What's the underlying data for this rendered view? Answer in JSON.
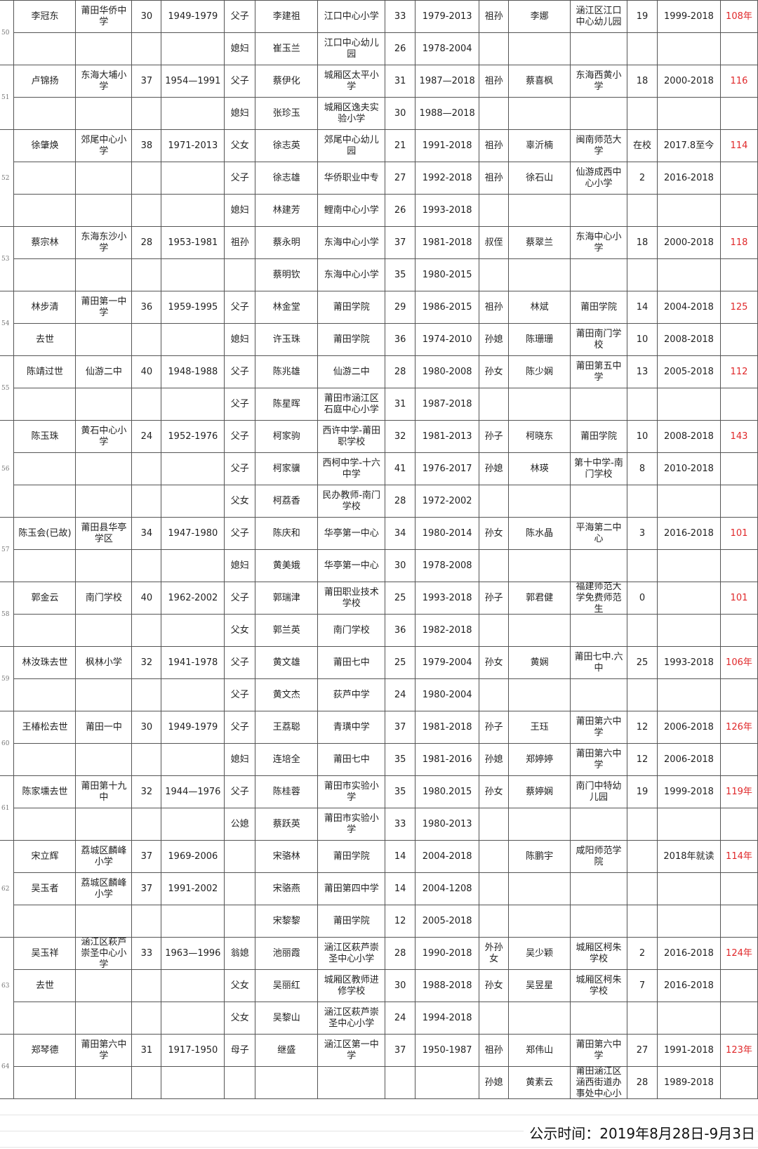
{
  "colors": {
    "grid": "#555555",
    "total_text": "#e0282a"
  },
  "groups": [
    {
      "no": "50",
      "rows": [
        [
          "李冠东",
          "莆田华侨中学",
          "30",
          "1949-1979",
          "父子",
          "李建祖",
          "江口中心小学",
          "33",
          "1979-2013",
          "祖孙",
          "李娜",
          "涵江区江口中心幼儿园",
          "19",
          "1999-2018",
          "108年"
        ],
        [
          "",
          "",
          "",
          "",
          "媳妇",
          "崔玉兰",
          "江口中心幼儿园",
          "26",
          "1978-2004",
          "",
          "",
          "",
          "",
          "",
          ""
        ]
      ]
    },
    {
      "no": "51",
      "rows": [
        [
          "卢锦扬",
          "东海大埔小学",
          "37",
          "1954—1991",
          "父子",
          "蔡伊化",
          "城厢区太平小学",
          "31",
          "1987—2018",
          "祖孙",
          "蔡喜枫",
          "东海西黄小学",
          "18",
          "2000-2018",
          "116"
        ],
        [
          "",
          "",
          "",
          "",
          "媳妇",
          "张珍玉",
          "城厢区逸夫实验小学",
          "30",
          "1988—2018",
          "",
          "",
          "",
          "",
          "",
          ""
        ]
      ]
    },
    {
      "no": "52",
      "rows": [
        [
          "徐肇焕",
          "郊尾中心小学",
          "38",
          "1971-2013",
          "父女",
          "徐志英",
          "郊尾中心幼儿园",
          "21",
          "1991-2018",
          "祖孙",
          "辜沂楠",
          "闽南师范大学",
          "在校",
          "2017.8至今",
          "114"
        ],
        [
          "",
          "",
          "",
          "",
          "父子",
          "徐志雄",
          "华侨职业中专",
          "27",
          "1992-2018",
          "祖孙",
          "徐石山",
          "仙游成西中心小学",
          "2",
          "2016-2018",
          ""
        ],
        [
          "",
          "",
          "",
          "",
          "媳妇",
          "林建芳",
          "鲤南中心小学",
          "26",
          "1993-2018",
          "",
          "",
          "",
          "",
          "",
          ""
        ]
      ]
    },
    {
      "no": "53",
      "rows": [
        [
          "蔡宗林",
          "东海东沙小学",
          "28",
          "1953-1981",
          "祖孙",
          "蔡永明",
          "东海中心小学",
          "37",
          "1981-2018",
          "叔侄",
          "蔡翠兰",
          "东海中心小学",
          "18",
          "2000-2018",
          "118"
        ],
        [
          "",
          "",
          "",
          "",
          "",
          "蔡明钦",
          "东海中心小学",
          "35",
          "1980-2015",
          "",
          "",
          "",
          "",
          "",
          ""
        ]
      ]
    },
    {
      "no": "54",
      "rows": [
        [
          "林步清",
          "莆田第一中学",
          "36",
          "1959-1995",
          "父子",
          "林金堂",
          "莆田学院",
          "29",
          "1986-2015",
          "祖孙",
          "林斌",
          "莆田学院",
          "14",
          "2004-2018",
          "125"
        ],
        [
          "去世",
          "",
          "",
          "",
          "媳妇",
          "许玉珠",
          "莆田学院",
          "36",
          "1974-2010",
          "孙媳",
          "陈珊珊",
          "莆田南门学校",
          "10",
          "2008-2018",
          ""
        ]
      ]
    },
    {
      "no": "55",
      "rows": [
        [
          "陈靖过世",
          "仙游二中",
          "40",
          "1948-1988",
          "父子",
          "陈兆雄",
          "仙游二中",
          "28",
          "1980-2008",
          "孙女",
          "陈少娴",
          "莆田第五中学",
          "13",
          "2005-2018",
          "112"
        ],
        [
          "",
          "",
          "",
          "",
          "父子",
          "陈星晖",
          "莆田市涵江区石庭中心小学",
          "31",
          "1987-2018",
          "",
          "",
          "",
          "",
          "",
          ""
        ]
      ]
    },
    {
      "no": "56",
      "rows": [
        [
          "陈玉珠",
          "黄石中心小学",
          "24",
          "1952-1976",
          "父子",
          "柯家驹",
          "西许中学-莆田职学校",
          "32",
          "1981-2013",
          "孙子",
          "柯晓东",
          "莆田学院",
          "10",
          "2008-2018",
          "143"
        ],
        [
          "",
          "",
          "",
          "",
          "父子",
          "柯家骥",
          "西柯中学-十六中学",
          "41",
          "1976-2017",
          "孙媳",
          "林瑛",
          "第十中学-南门学校",
          "8",
          "2010-2018",
          ""
        ],
        [
          "",
          "",
          "",
          "",
          "父女",
          "柯荔香",
          "民办教师-南门学校",
          "28",
          "1972-2002",
          "",
          "",
          "",
          "",
          "",
          ""
        ]
      ]
    },
    {
      "no": "57",
      "rows": [
        [
          "陈玉会(已故)",
          "莆田县华亭学区",
          "34",
          "1947-1980",
          "父子",
          "陈庆和",
          "华亭第一中心",
          "34",
          "1980-2014",
          "孙女",
          "陈水晶",
          "平海第二中心",
          "3",
          "2016-2018",
          "101"
        ],
        [
          "",
          "",
          "",
          "",
          "媳妇",
          "黄美娥",
          "华亭第一中心",
          "30",
          "1978-2008",
          "",
          "",
          "",
          "",
          "",
          ""
        ]
      ]
    },
    {
      "no": "58",
      "rows": [
        [
          "郭金云",
          "南门学校",
          "40",
          "1962-2002",
          "父子",
          "郭瑞津",
          "莆田职业技术学校",
          "25",
          "1993-2018",
          "孙子",
          "郭君健",
          "福建师范大学免费师范生",
          "0",
          "",
          "101"
        ],
        [
          "",
          "",
          "",
          "",
          "父女",
          "郭兰英",
          "南门学校",
          "36",
          "1982-2018",
          "",
          "",
          "",
          "",
          "",
          ""
        ]
      ]
    },
    {
      "no": "59",
      "rows": [
        [
          "林汝珠去世",
          "枫林小学",
          "32",
          "1941-1978",
          "父子",
          "黄文雄",
          "莆田七中",
          "25",
          "1979-2004",
          "孙女",
          "黄娴",
          "莆田七中.六中",
          "25",
          "1993-2018",
          "106年"
        ],
        [
          "",
          "",
          "",
          "",
          "父子",
          "黄文杰",
          "荻芦中学",
          "24",
          "1980-2004",
          "",
          "",
          "",
          "",
          "",
          ""
        ]
      ]
    },
    {
      "no": "60",
      "rows": [
        [
          "王椿松去世",
          "莆田一中",
          "30",
          "1949-1979",
          "父子",
          "王荔聪",
          "青璜中学",
          "37",
          "1981-2018",
          "孙子",
          "王珏",
          "莆田第六中学",
          "12",
          "2006-2018",
          "126年"
        ],
        [
          "",
          "",
          "",
          "",
          "媳妇",
          "连培全",
          "莆田七中",
          "35",
          "1981-2016",
          "孙媳",
          "郑婷婷",
          "莆田第六中学",
          "12",
          "2006-2018",
          ""
        ]
      ]
    },
    {
      "no": "61",
      "rows": [
        [
          "陈家壎去世",
          "莆田第十九中",
          "32",
          "1944—1976",
          "父子",
          "陈桂蓉",
          "莆田市实验小学",
          "35",
          "1980.2015",
          "孙女",
          "蔡婷娴",
          "南门中特幼儿园",
          "19",
          "1999-2018",
          "119年"
        ],
        [
          "",
          "",
          "",
          "",
          "公媳",
          "蔡跃英",
          "莆田市实验小学",
          "33",
          "1980-2013",
          "",
          "",
          "",
          "",
          "",
          ""
        ]
      ]
    },
    {
      "no": "62",
      "rows": [
        [
          "宋立辉",
          "荔城区麟峰小学",
          "37",
          "1969-2006",
          "",
          "宋骆林",
          "莆田学院",
          "14",
          "2004-2018",
          "",
          "陈鹏宇",
          "咸阳师范学院",
          "",
          "2018年就读",
          "114年"
        ],
        [
          "吴玉者",
          "荔城区麟峰小学",
          "37",
          "1991-2002",
          "",
          "宋骆燕",
          "莆田第四中学",
          "14",
          "2004-1208",
          "",
          "",
          "",
          "",
          "",
          ""
        ],
        [
          "",
          "",
          "",
          "",
          "",
          "宋黎黎",
          "莆田学院",
          "12",
          "2005-2018",
          "",
          "",
          "",
          "",
          "",
          ""
        ]
      ]
    },
    {
      "no": "63",
      "rows": [
        [
          "吴玉祥",
          "涵江区萩芦崇圣中心小学",
          "33",
          "1963—1996",
          "翁媳",
          "池丽霞",
          "涵江区萩芦崇圣中心小学",
          "28",
          "1990-2018",
          "外孙女",
          "吴少颖",
          "城厢区柯朱学校",
          "2",
          "2016-2018",
          "124年"
        ],
        [
          "去世",
          "",
          "",
          "",
          "父女",
          "吴丽红",
          "城厢区教师进修学校",
          "30",
          "1988-2018",
          "孙女",
          "吴昱星",
          "城厢区柯朱学校",
          "7",
          "2016-2018",
          ""
        ],
        [
          "",
          "",
          "",
          "",
          "父女",
          "吴黎山",
          "涵江区萩芦崇圣中心小学",
          "24",
          "1994-2018",
          "",
          "",
          "",
          "",
          "",
          ""
        ]
      ]
    },
    {
      "no": "64",
      "rows": [
        [
          "郑琴德",
          "莆田第六中学",
          "31",
          "1917-1950",
          "母子",
          "继盛",
          "涵江区第一中学",
          "37",
          "1950-1987",
          "祖孙",
          "郑伟山",
          "莆田第六中学",
          "27",
          "1991-2018",
          "123年"
        ],
        [
          "",
          "",
          "",
          "",
          "",
          "",
          "",
          "",
          "",
          "孙媳",
          "黄素云",
          "莆田涵江区涵西街道办事处中心小",
          "28",
          "1989-2018",
          ""
        ]
      ]
    }
  ],
  "footer": {
    "publish_time": "公示时间：2019年8月28日-9月3日"
  }
}
